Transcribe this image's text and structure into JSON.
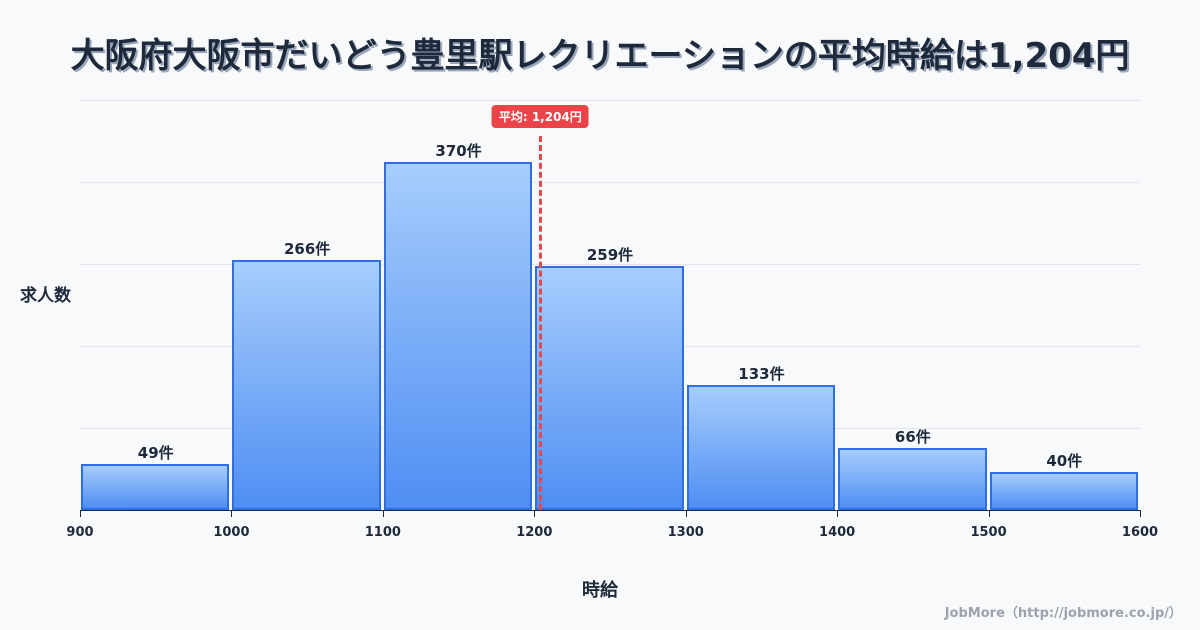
{
  "title": "大阪府大阪市だいどう豊里駅レクリエーションの平均時給は1,204円",
  "y_axis_label": "求人数",
  "x_axis_label": "時給",
  "average_badge": "平均: 1,204円",
  "credit": "JobMore（http://jobmore.co.jp/）",
  "colors": {
    "bar_border": "#2f6fe4",
    "bar_top": "#a6cdfc",
    "bar_bottom": "#4f8ef3",
    "average_line": "#e5484d",
    "title": "#1e293b"
  },
  "bars": [
    {
      "range": "900-1000",
      "label": "49件"
    },
    {
      "range": "1000-1100",
      "label": "266件"
    },
    {
      "range": "1100-1200",
      "label": "370件"
    },
    {
      "range": "1200-1300",
      "label": "259件"
    },
    {
      "range": "1300-1400",
      "label": "133件"
    },
    {
      "range": "1400-1500",
      "label": "66件"
    },
    {
      "range": "1500-1600",
      "label": "40件"
    }
  ],
  "ticks": [
    "900",
    "1000",
    "1100",
    "1200",
    "1300",
    "1400",
    "1500",
    "1600"
  ],
  "chart_data": {
    "type": "bar",
    "title": "大阪府大阪市だいどう豊里駅レクリエーションの平均時給は1,204円",
    "xlabel": "時給",
    "ylabel": "求人数",
    "categories": [
      "900-1000",
      "1000-1100",
      "1100-1200",
      "1200-1300",
      "1300-1400",
      "1400-1500",
      "1500-1600"
    ],
    "bin_edges": [
      900,
      1000,
      1100,
      1200,
      1300,
      1400,
      1500,
      1600
    ],
    "values": [
      49,
      266,
      370,
      259,
      133,
      66,
      40
    ],
    "value_labels": [
      "49件",
      "266件",
      "370件",
      "259件",
      "133件",
      "66件",
      "40件"
    ],
    "annotations": [
      {
        "type": "vline",
        "x": 1204,
        "label": "平均: 1,204円",
        "style": "dashed",
        "color": "#e5484d"
      }
    ],
    "xlim": [
      900,
      1600
    ],
    "grid": true,
    "legend": "none"
  }
}
